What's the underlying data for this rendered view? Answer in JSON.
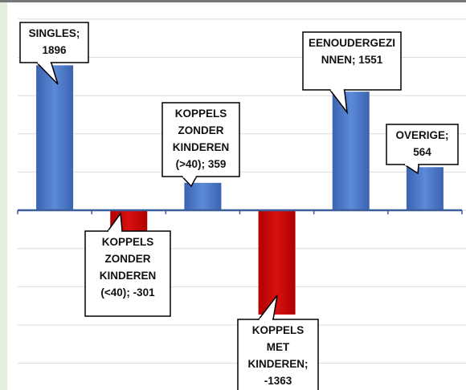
{
  "chart_data": {
    "type": "bar",
    "categories": [
      "SINGLES",
      "KOPPELS ZONDER KINDEREN (<40)",
      "KOPPELS ZONDER KINDEREN (>40)",
      "KOPPELS MET KINDEREN",
      "EENOUDERGEZINNEN",
      "OVERIGE"
    ],
    "values": [
      1896,
      -301,
      359,
      -1363,
      1551,
      564
    ],
    "data_label_separator": "; ",
    "colors": {
      "positive": "#4472c4",
      "negative": "#c00000"
    },
    "ylim": [
      -2350,
      2750
    ],
    "yticks": [
      -2000,
      -1500,
      -1000,
      -500,
      0,
      500,
      1000,
      1500,
      2000,
      2500
    ],
    "grid": true
  }
}
